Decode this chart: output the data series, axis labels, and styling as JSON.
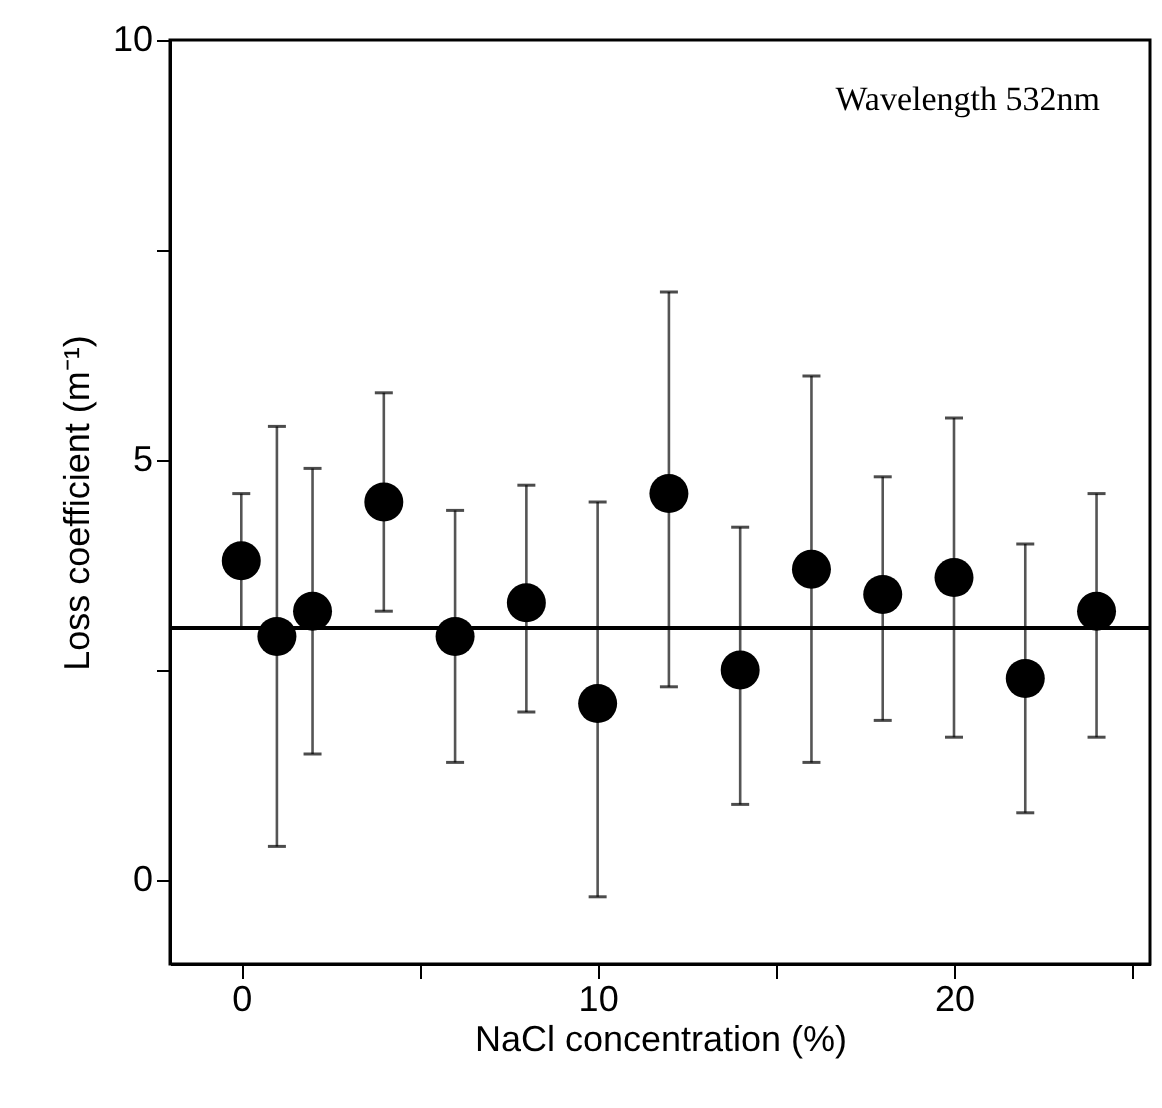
{
  "chart_data": {
    "type": "scatter",
    "xlabel": "NaCl concentration (%)",
    "ylabel": "Loss coefficient (m⁻¹)",
    "annotations": [
      "Wavelength 532nm"
    ],
    "x": [
      0,
      1,
      2,
      4,
      6,
      8,
      10,
      12,
      14,
      16,
      18,
      20,
      22,
      24
    ],
    "series": [
      {
        "color": "#000000",
        "values": [
          3.8,
          2.9,
          3.2,
          4.5,
          2.9,
          3.3,
          2.1,
          4.6,
          2.5,
          3.7,
          3.4,
          3.6,
          2.4,
          3.2
        ],
        "errors": [
          [
            3.0,
            4.6
          ],
          [
            0.4,
            5.4
          ],
          [
            1.5,
            4.9
          ],
          [
            3.2,
            5.8
          ],
          [
            1.4,
            4.4
          ],
          [
            2.0,
            4.7
          ],
          [
            -0.2,
            4.5
          ],
          [
            2.3,
            7.0
          ],
          [
            0.9,
            4.2
          ],
          [
            1.4,
            6.0
          ],
          [
            1.9,
            4.8
          ],
          [
            1.7,
            5.5
          ],
          [
            0.8,
            4.0
          ],
          [
            1.7,
            4.6
          ]
        ]
      }
    ],
    "xlim": [
      -2,
      25.5
    ],
    "xticks": [
      0,
      {
        "value": 5,
        "label": null
      },
      10,
      {
        "value": 15,
        "label": null
      },
      20,
      {
        "value": 25,
        "label": null
      }
    ],
    "ylim": [
      -1,
      10
    ],
    "yticks": [
      0,
      {
        "value": 2.5,
        "label": null
      },
      5,
      {
        "value": 7.5,
        "label": null
      },
      10
    ],
    "ref_lines": [
      {
        "axis": "y",
        "value": 3.0,
        "color": "#000000"
      }
    ],
    "grid": false,
    "marker": "circle"
  }
}
